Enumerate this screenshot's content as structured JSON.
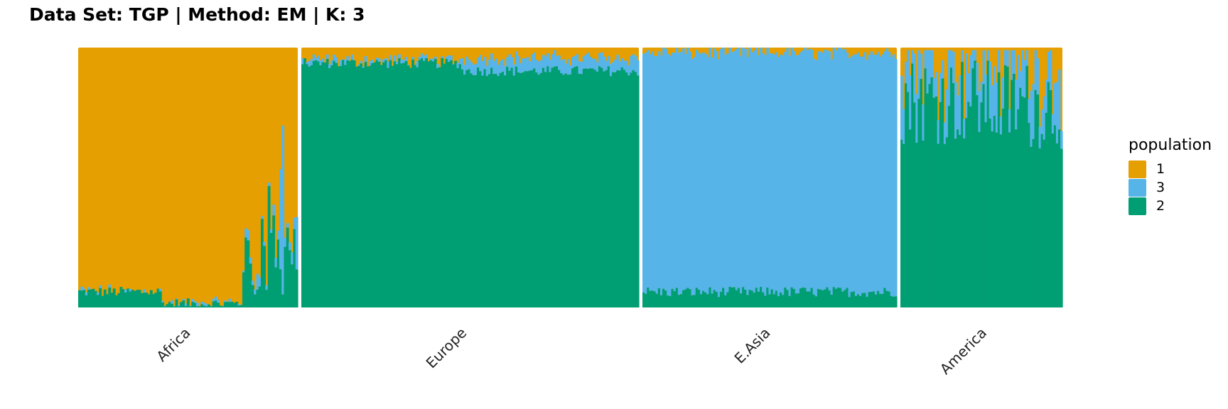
{
  "title": "Data Set: TGP | Method: EM | K: 3",
  "chart_data": {
    "type": "bar",
    "stacked": true,
    "layout": "faceted structure plot (one facet per population group)",
    "ylim": [
      0,
      1
    ],
    "xlabel": "",
    "ylabel": "",
    "grid": false,
    "legend": {
      "title": "population",
      "placement": "right",
      "entries": [
        {
          "name": "1",
          "color": "#E69F00"
        },
        {
          "name": "3",
          "color": "#56B4E9"
        },
        {
          "name": "2",
          "color": "#009E73"
        }
      ]
    },
    "facets": [
      {
        "name": "Africa",
        "bars": 95,
        "segments": [
          {
            "from": 0.0,
            "to": 0.37,
            "comp2": 0.06,
            "comp3": 0.0
          },
          {
            "from": 0.37,
            "to": 0.74,
            "comp2": 0.015,
            "comp3": 0.0
          },
          {
            "from": 0.74,
            "to": 1.0,
            "comp2": 0.25,
            "comp3": 0.06
          }
        ]
      },
      {
        "name": "Europe",
        "bars": 150,
        "segments": [
          {
            "from": 0.0,
            "to": 0.47,
            "comp2": 0.94,
            "comp3": 0.01
          },
          {
            "from": 0.47,
            "to": 1.0,
            "comp2": 0.91,
            "comp3": 0.05
          }
        ]
      },
      {
        "name": "E.Asia",
        "bars": 115,
        "segments": [
          {
            "from": 0.0,
            "to": 1.0,
            "comp2": 0.06,
            "comp3": 0.92
          }
        ]
      },
      {
        "name": "America",
        "bars": 75,
        "segments": [
          {
            "from": 0.0,
            "to": 0.55,
            "comp2": 0.8,
            "comp3": 0.13
          },
          {
            "from": 0.55,
            "to": 1.0,
            "comp2": 0.78,
            "comp3": 0.12
          }
        ]
      }
    ]
  }
}
